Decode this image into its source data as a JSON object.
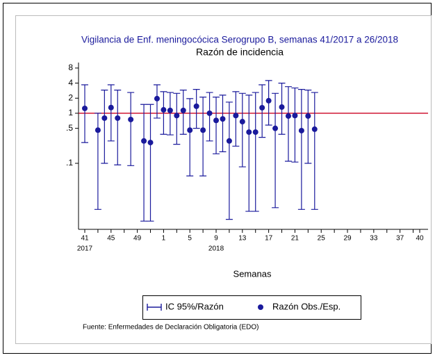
{
  "chart_data": {
    "type": "errorbar",
    "title": "Vigilancia de Enf. meningocócica Serogrupo B, semanas 41/2017 a 26/2018",
    "subtitle": "Razón de incidencia",
    "x_label": "Semanas",
    "note": "Fuente: Enfermedades de Declaración Obligatoria (EDO)",
    "categories": [
      "41",
      null,
      null,
      null,
      "45",
      null,
      null,
      null,
      "49",
      null,
      null,
      null,
      "1",
      null,
      null,
      null,
      "5",
      null,
      null,
      null,
      "9",
      null,
      null,
      null,
      "13",
      null,
      null,
      null,
      "17",
      null,
      null,
      null,
      "21",
      null,
      null,
      null,
      "25",
      null,
      null,
      null,
      "29",
      null,
      null,
      null,
      "33",
      null,
      null,
      null,
      "37",
      null,
      null,
      "40"
    ],
    "year_labels": [
      {
        "label": "2017",
        "category": 0
      },
      {
        "label": "2018",
        "category": 20
      }
    ],
    "ci": {
      "name": "IC 95%/Razón",
      "color": "#1a1a9c",
      "lower": [
        0.26,
        null,
        0.012,
        0.1,
        0.28,
        0.093,
        null,
        0.09,
        null,
        0.007,
        0.007,
        0.8,
        0.38,
        0.37,
        0.24,
        0.38,
        0.056,
        0.5,
        0.056,
        0.28,
        0.155,
        0.17,
        0.0076,
        0.22,
        0.085,
        0.011,
        0.011,
        0.33,
        0.58,
        0.013,
        0.38,
        0.11,
        0.106,
        0.012,
        0.1,
        0.012,
        null,
        null,
        null,
        null,
        null,
        null,
        null,
        null,
        null,
        null,
        null,
        null,
        null,
        null,
        null,
        null
      ],
      "upper": [
        3.7,
        null,
        1.0,
        2.9,
        3.7,
        2.9,
        null,
        2.6,
        null,
        1.5,
        1.5,
        3.7,
        2.7,
        2.6,
        2.5,
        2.9,
        1.96,
        3,
        2.1,
        2.6,
        2.1,
        2.3,
        1.67,
        2.7,
        2.5,
        2.3,
        2.6,
        3.7,
        4.5,
        2.5,
        4,
        3.4,
        3.2,
        3,
        2.9,
        2.6,
        null,
        null,
        null,
        null,
        null,
        null,
        null,
        null,
        null,
        null,
        null,
        null,
        null,
        null,
        null,
        null
      ]
    },
    "series": [
      {
        "name": "Razón Obs./Esp.",
        "color": "#1a1a9c",
        "values": [
          1.25,
          null,
          0.46,
          0.8,
          1.3,
          0.8,
          null,
          0.75,
          null,
          0.28,
          0.26,
          1.96,
          1.17,
          1.14,
          0.9,
          1.14,
          0.46,
          1.38,
          0.46,
          1.0,
          0.72,
          0.77,
          0.28,
          0.9,
          0.68,
          0.42,
          0.42,
          1.29,
          1.78,
          0.5,
          1.33,
          0.88,
          0.9,
          0.45,
          0.88,
          0.48,
          null,
          null,
          null,
          null,
          null,
          null,
          null,
          null,
          null,
          null,
          null,
          null,
          null,
          null,
          null,
          null
        ]
      }
    ],
    "refline": {
      "value": 1,
      "color": "#cc0022"
    },
    "log_y": true,
    "ylim": [
      0.0048,
      10.3
    ],
    "yticks": [
      {
        "value": 0.1,
        "label": ".1"
      },
      {
        "value": 0.5,
        "label": ".5"
      },
      1,
      2,
      4,
      8
    ]
  }
}
